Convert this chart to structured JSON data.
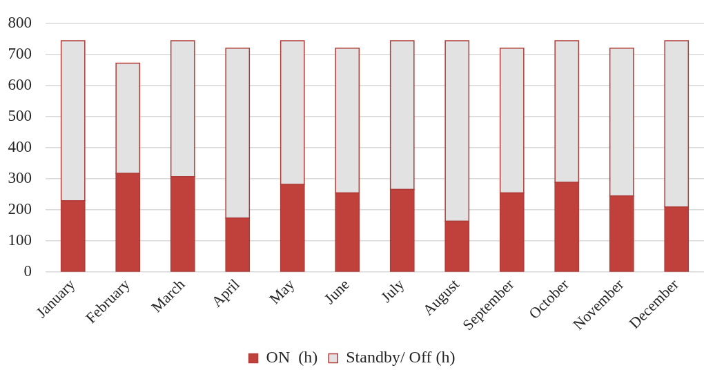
{
  "chart_data": {
    "type": "bar",
    "stacked": true,
    "categories": [
      "January",
      "February",
      "March",
      "April",
      "May",
      "June",
      "July",
      "August",
      "September",
      "October",
      "November",
      "December"
    ],
    "series": [
      {
        "name": "ON  (h)",
        "color": "#c0413c",
        "values": [
          229,
          317,
          307,
          173,
          281,
          254,
          265,
          163,
          254,
          288,
          244,
          209
        ]
      },
      {
        "name": "Standby/ Off (h)",
        "color": "#e2e2e2",
        "values": [
          515,
          355,
          437,
          547,
          463,
          466,
          479,
          581,
          466,
          456,
          476,
          535
        ]
      }
    ],
    "ylim": [
      0,
      800
    ],
    "yticks": [
      0,
      100,
      200,
      300,
      400,
      500,
      600,
      700,
      800
    ],
    "grid": "y",
    "legend": "bottom"
  }
}
